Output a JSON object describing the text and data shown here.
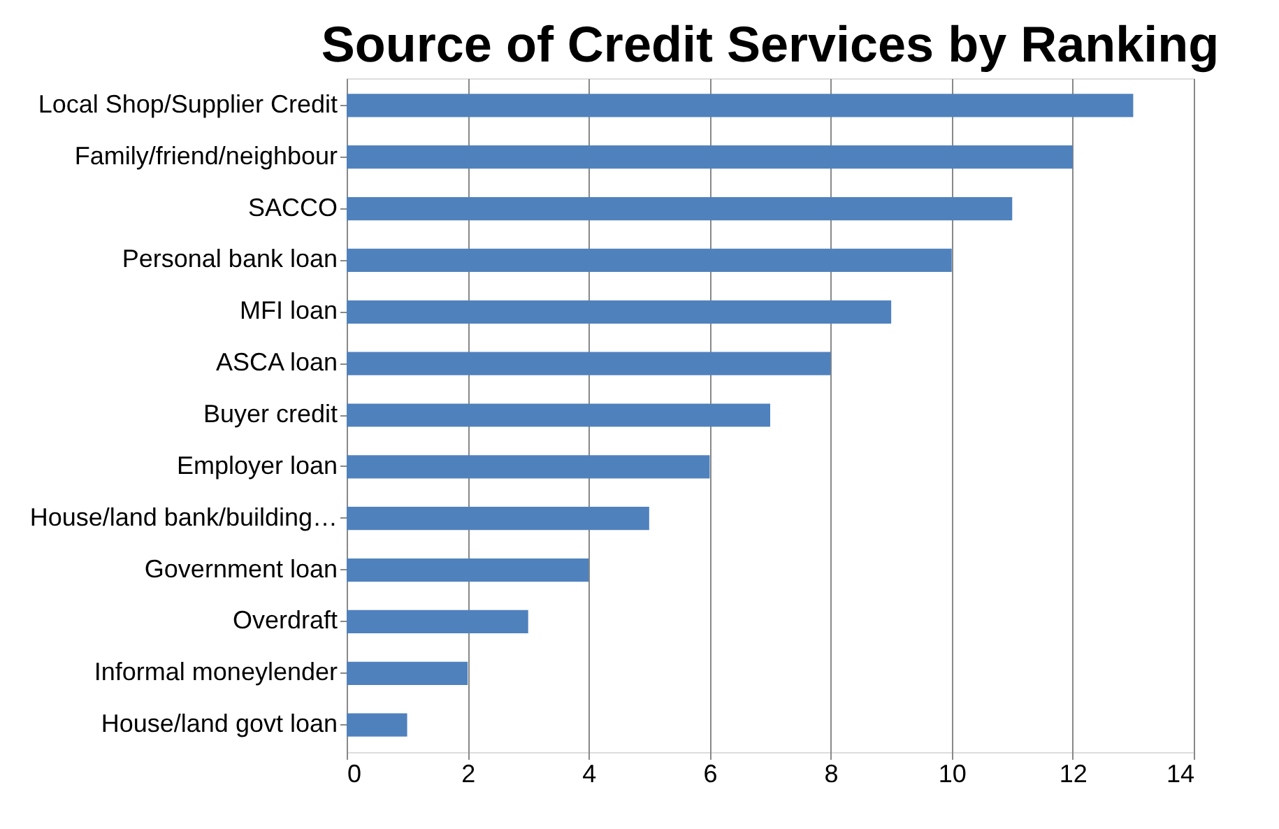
{
  "chart_data": {
    "type": "bar",
    "orientation": "horizontal",
    "title": "Source of Credit Services by Ranking",
    "categories": [
      "Local Shop/Supplier Credit",
      "Family/friend/neighbour",
      "SACCO",
      "Personal bank loan",
      "MFI loan",
      "ASCA loan",
      "Buyer credit",
      "Employer loan",
      "House/land bank/building…",
      "Government loan",
      "Overdraft",
      "Informal moneylender",
      "House/land govt loan"
    ],
    "values": [
      13,
      12,
      11,
      10,
      9,
      8,
      7,
      6,
      5,
      4,
      3,
      2,
      1
    ],
    "color": "#4f81bd",
    "xlim": [
      0,
      14
    ],
    "xticks": [
      0,
      2,
      4,
      6,
      8,
      10,
      12,
      14
    ],
    "grid": "x"
  }
}
